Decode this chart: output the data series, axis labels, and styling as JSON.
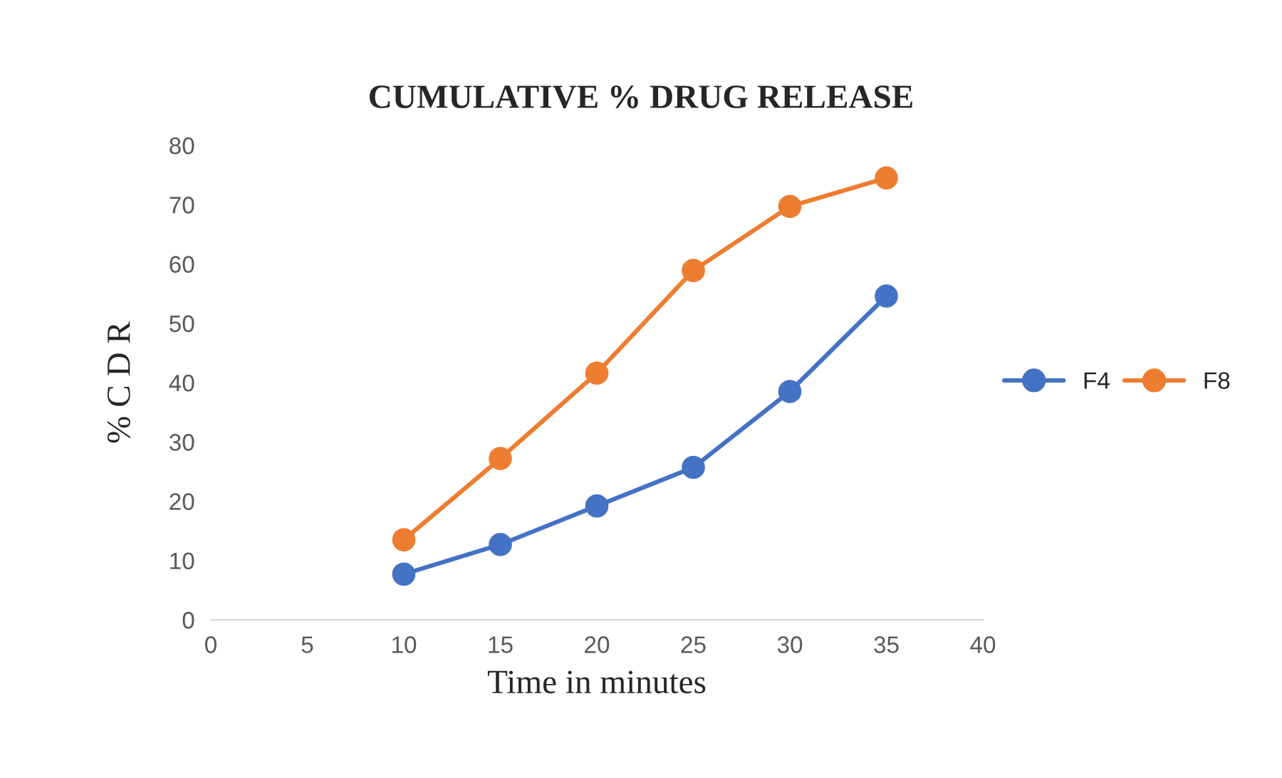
{
  "chart_data": {
    "type": "line",
    "title": "CUMULATIVE % DRUG RELEASE",
    "xlabel": "Time in minutes",
    "ylabel": "% C D R",
    "x": [
      10,
      15,
      20,
      25,
      30,
      35
    ],
    "series": [
      {
        "name": "F4",
        "color": "#4472c4",
        "values": [
          7.7,
          12.7,
          19.2,
          25.7,
          38.5,
          54.6
        ]
      },
      {
        "name": "F8",
        "color": "#ed7d31",
        "values": [
          13.5,
          27.2,
          41.6,
          58.9,
          69.7,
          74.5
        ]
      }
    ],
    "xlim": [
      0,
      40
    ],
    "xticks": [
      0,
      5,
      10,
      15,
      20,
      25,
      30,
      35,
      40
    ],
    "ylim": [
      0,
      80
    ],
    "yticks": [
      0,
      10,
      20,
      30,
      40,
      50,
      60,
      70,
      80
    ],
    "grid": false,
    "legend": "right",
    "marker": "circle",
    "line_style": "solid"
  }
}
